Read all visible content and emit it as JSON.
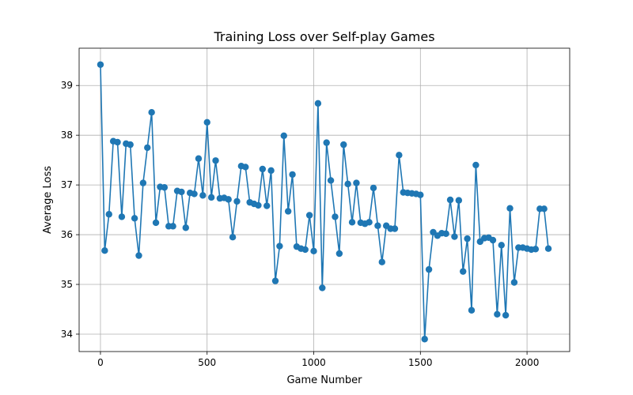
{
  "chart_data": {
    "type": "line",
    "title": "Training Loss over Self-play Games",
    "xlabel": "Game Number",
    "ylabel": "Average Loss",
    "xlim": [
      -100,
      2200
    ],
    "ylim": [
      33.65,
      39.75
    ],
    "xticks": [
      0,
      500,
      1000,
      1500,
      2000
    ],
    "yticks": [
      34,
      35,
      36,
      37,
      38,
      39
    ],
    "grid": true,
    "color": "#1f77b4",
    "series": [
      {
        "x": [
          0,
          20,
          40,
          60,
          80,
          100,
          120,
          140,
          160,
          180,
          200,
          220,
          240,
          260,
          280,
          300,
          320,
          340,
          360,
          380,
          400,
          420,
          440,
          460,
          480,
          500,
          520,
          540,
          560,
          580,
          600,
          620,
          640,
          660,
          680,
          700,
          720,
          740,
          760,
          780,
          800,
          820,
          840,
          860,
          880,
          900,
          920,
          940,
          960,
          980,
          1000,
          1020,
          1040,
          1060,
          1080,
          1100,
          1120,
          1140,
          1160,
          1180,
          1200,
          1220,
          1240,
          1260,
          1280,
          1300,
          1320,
          1340,
          1360,
          1380,
          1400,
          1420,
          1440,
          1460,
          1480,
          1500,
          1520,
          1540,
          1560,
          1580,
          1600,
          1620,
          1640,
          1660,
          1680,
          1700,
          1720,
          1740,
          1760,
          1780,
          1800,
          1820,
          1840,
          1860,
          1880,
          1900,
          1920,
          1940,
          1960,
          1980,
          2000,
          2020,
          2040,
          2060,
          2080,
          2100
        ],
        "y": [
          39.42,
          35.68,
          36.41,
          37.88,
          37.86,
          36.36,
          37.83,
          37.81,
          36.33,
          35.58,
          37.04,
          37.75,
          38.46,
          36.24,
          36.96,
          36.95,
          36.17,
          36.17,
          36.88,
          36.86,
          36.14,
          36.84,
          36.82,
          37.53,
          36.79,
          38.26,
          36.75,
          37.49,
          36.73,
          36.74,
          36.71,
          35.95,
          36.67,
          37.38,
          37.36,
          36.65,
          36.62,
          36.59,
          37.32,
          36.58,
          37.29,
          35.07,
          35.77,
          37.99,
          36.47,
          37.21,
          35.76,
          35.72,
          35.7,
          36.39,
          35.67,
          38.64,
          34.93,
          37.85,
          37.09,
          36.36,
          35.62,
          37.81,
          37.02,
          36.25,
          37.04,
          36.24,
          36.22,
          36.25,
          36.94,
          36.18,
          35.45,
          36.18,
          36.12,
          36.12,
          37.6,
          36.85,
          36.84,
          36.83,
          36.82,
          36.8,
          33.9,
          35.3,
          36.05,
          35.98,
          36.03,
          36.02,
          36.7,
          35.96,
          36.69,
          35.26,
          35.92,
          34.48,
          37.4,
          35.86,
          35.93,
          35.94,
          35.89,
          34.4,
          35.79,
          34.38,
          36.53,
          35.04,
          35.74,
          35.74,
          35.72,
          35.7,
          35.71,
          36.52,
          36.52,
          35.72
        ]
      }
    ]
  }
}
